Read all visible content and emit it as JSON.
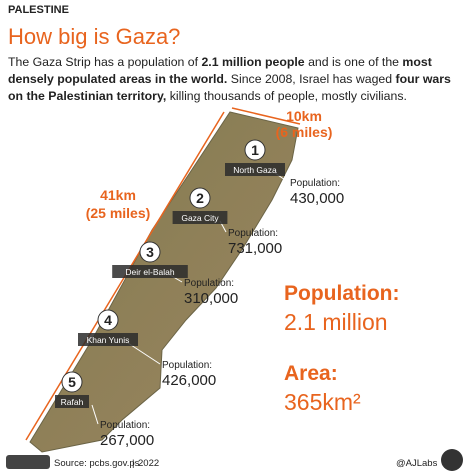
{
  "header": {
    "kicker": "PALESTINE",
    "title": "How big is Gaza?",
    "intro": [
      {
        "text": "The Gaza Strip has a population of ",
        "bold": false
      },
      {
        "text": "2.1 million people",
        "bold": true
      },
      {
        "text": " and is one of the ",
        "bold": false
      },
      {
        "text": "most densely populated areas in the world.",
        "bold": true
      },
      {
        "text": " Since 2008, Israel has waged ",
        "bold": false
      },
      {
        "text": "four wars on the Palestinian territory,",
        "bold": true
      },
      {
        "text": " killing thousands of people, mostly civilians.",
        "bold": false
      }
    ]
  },
  "map": {
    "width_label": [
      "10km",
      "(6 miles)"
    ],
    "length_label": [
      "41km",
      "(25 miles)"
    ],
    "governorates": [
      {
        "number": 1,
        "name": "North Gaza",
        "population_label": "Population:",
        "population": "430,000"
      },
      {
        "number": 2,
        "name": "Gaza City",
        "population_label": "Population:",
        "population": "731,000"
      },
      {
        "number": 3,
        "name": "Deir el-Balah",
        "population_label": "Population:",
        "population": "310,000"
      },
      {
        "number": 4,
        "name": "Khan Yunis",
        "population_label": "Population:",
        "population": "426,000"
      },
      {
        "number": 5,
        "name": "Rafah",
        "population_label": "Population:",
        "population": "267,000"
      }
    ]
  },
  "summary": {
    "population_label": "Population:",
    "population": "2.1 million",
    "area_label": "Area:",
    "area": "365km²"
  },
  "footer": {
    "source": "Source: pcbs.gov.ps",
    "year": "2022",
    "credit": "@AJLabs"
  }
}
